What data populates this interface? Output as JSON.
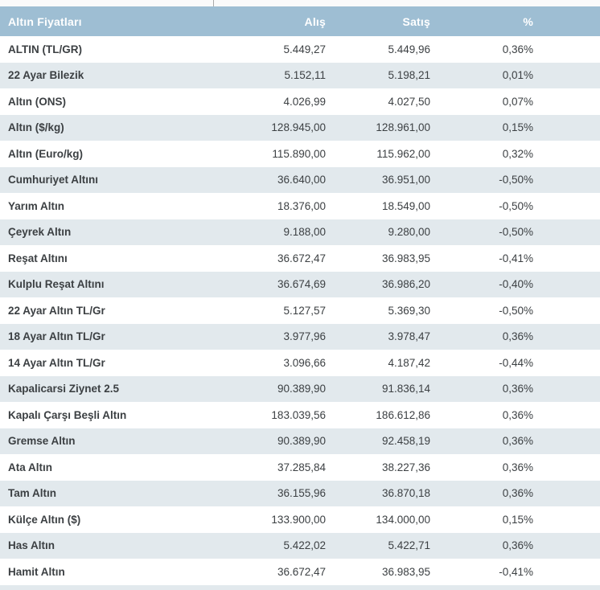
{
  "colors": {
    "header_bg": "#9ebed3",
    "header_text": "#ffffff",
    "alt_row_bg": "#e2e9ed",
    "text": "#3c4043"
  },
  "table": {
    "columns": {
      "name": "Altın Fiyatları",
      "buy": "Alış",
      "sell": "Satış",
      "change": "%"
    },
    "rows": [
      {
        "name": "ALTIN (TL/GR)",
        "buy": "5.449,27",
        "sell": "5.449,96",
        "change": "0,36%"
      },
      {
        "name": "22 Ayar Bilezik",
        "buy": "5.152,11",
        "sell": "5.198,21",
        "change": "0,01%"
      },
      {
        "name": "Altın (ONS)",
        "buy": "4.026,99",
        "sell": "4.027,50",
        "change": "0,07%"
      },
      {
        "name": "Altın ($/kg)",
        "buy": "128.945,00",
        "sell": "128.961,00",
        "change": "0,15%"
      },
      {
        "name": "Altın (Euro/kg)",
        "buy": "115.890,00",
        "sell": "115.962,00",
        "change": "0,32%"
      },
      {
        "name": "Cumhuriyet Altını",
        "buy": "36.640,00",
        "sell": "36.951,00",
        "change": "-0,50%"
      },
      {
        "name": "Yarım Altın",
        "buy": "18.376,00",
        "sell": "18.549,00",
        "change": "-0,50%"
      },
      {
        "name": "Çeyrek Altın",
        "buy": "9.188,00",
        "sell": "9.280,00",
        "change": "-0,50%"
      },
      {
        "name": "Reşat Altını",
        "buy": "36.672,47",
        "sell": "36.983,95",
        "change": "-0,41%"
      },
      {
        "name": "Kulplu Reşat Altını",
        "buy": "36.674,69",
        "sell": "36.986,20",
        "change": "-0,40%"
      },
      {
        "name": "22 Ayar Altın TL/Gr",
        "buy": "5.127,57",
        "sell": "5.369,30",
        "change": "-0,50%"
      },
      {
        "name": "18 Ayar Altın TL/Gr",
        "buy": "3.977,96",
        "sell": "3.978,47",
        "change": "0,36%"
      },
      {
        "name": "14 Ayar Altın TL/Gr",
        "buy": "3.096,66",
        "sell": "4.187,42",
        "change": "-0,44%"
      },
      {
        "name": "Kapalicarsi Ziynet 2.5",
        "buy": "90.389,90",
        "sell": "91.836,14",
        "change": "0,36%"
      },
      {
        "name": "Kapalı Çarşı Beşli Altın",
        "buy": "183.039,56",
        "sell": "186.612,86",
        "change": "0,36%"
      },
      {
        "name": "Gremse Altın",
        "buy": "90.389,90",
        "sell": "92.458,19",
        "change": "0,36%"
      },
      {
        "name": "Ata Altın",
        "buy": "37.285,84",
        "sell": "38.227,36",
        "change": "0,36%"
      },
      {
        "name": "Tam Altın",
        "buy": "36.155,96",
        "sell": "36.870,18",
        "change": "0,36%"
      },
      {
        "name": "Külçe Altın ($)",
        "buy": "133.900,00",
        "sell": "134.000,00",
        "change": "0,15%"
      },
      {
        "name": "Has Altın",
        "buy": "5.422,02",
        "sell": "5.422,71",
        "change": "0,36%"
      },
      {
        "name": "Hamit Altın",
        "buy": "36.672,47",
        "sell": "36.983,95",
        "change": "-0,41%"
      }
    ]
  }
}
